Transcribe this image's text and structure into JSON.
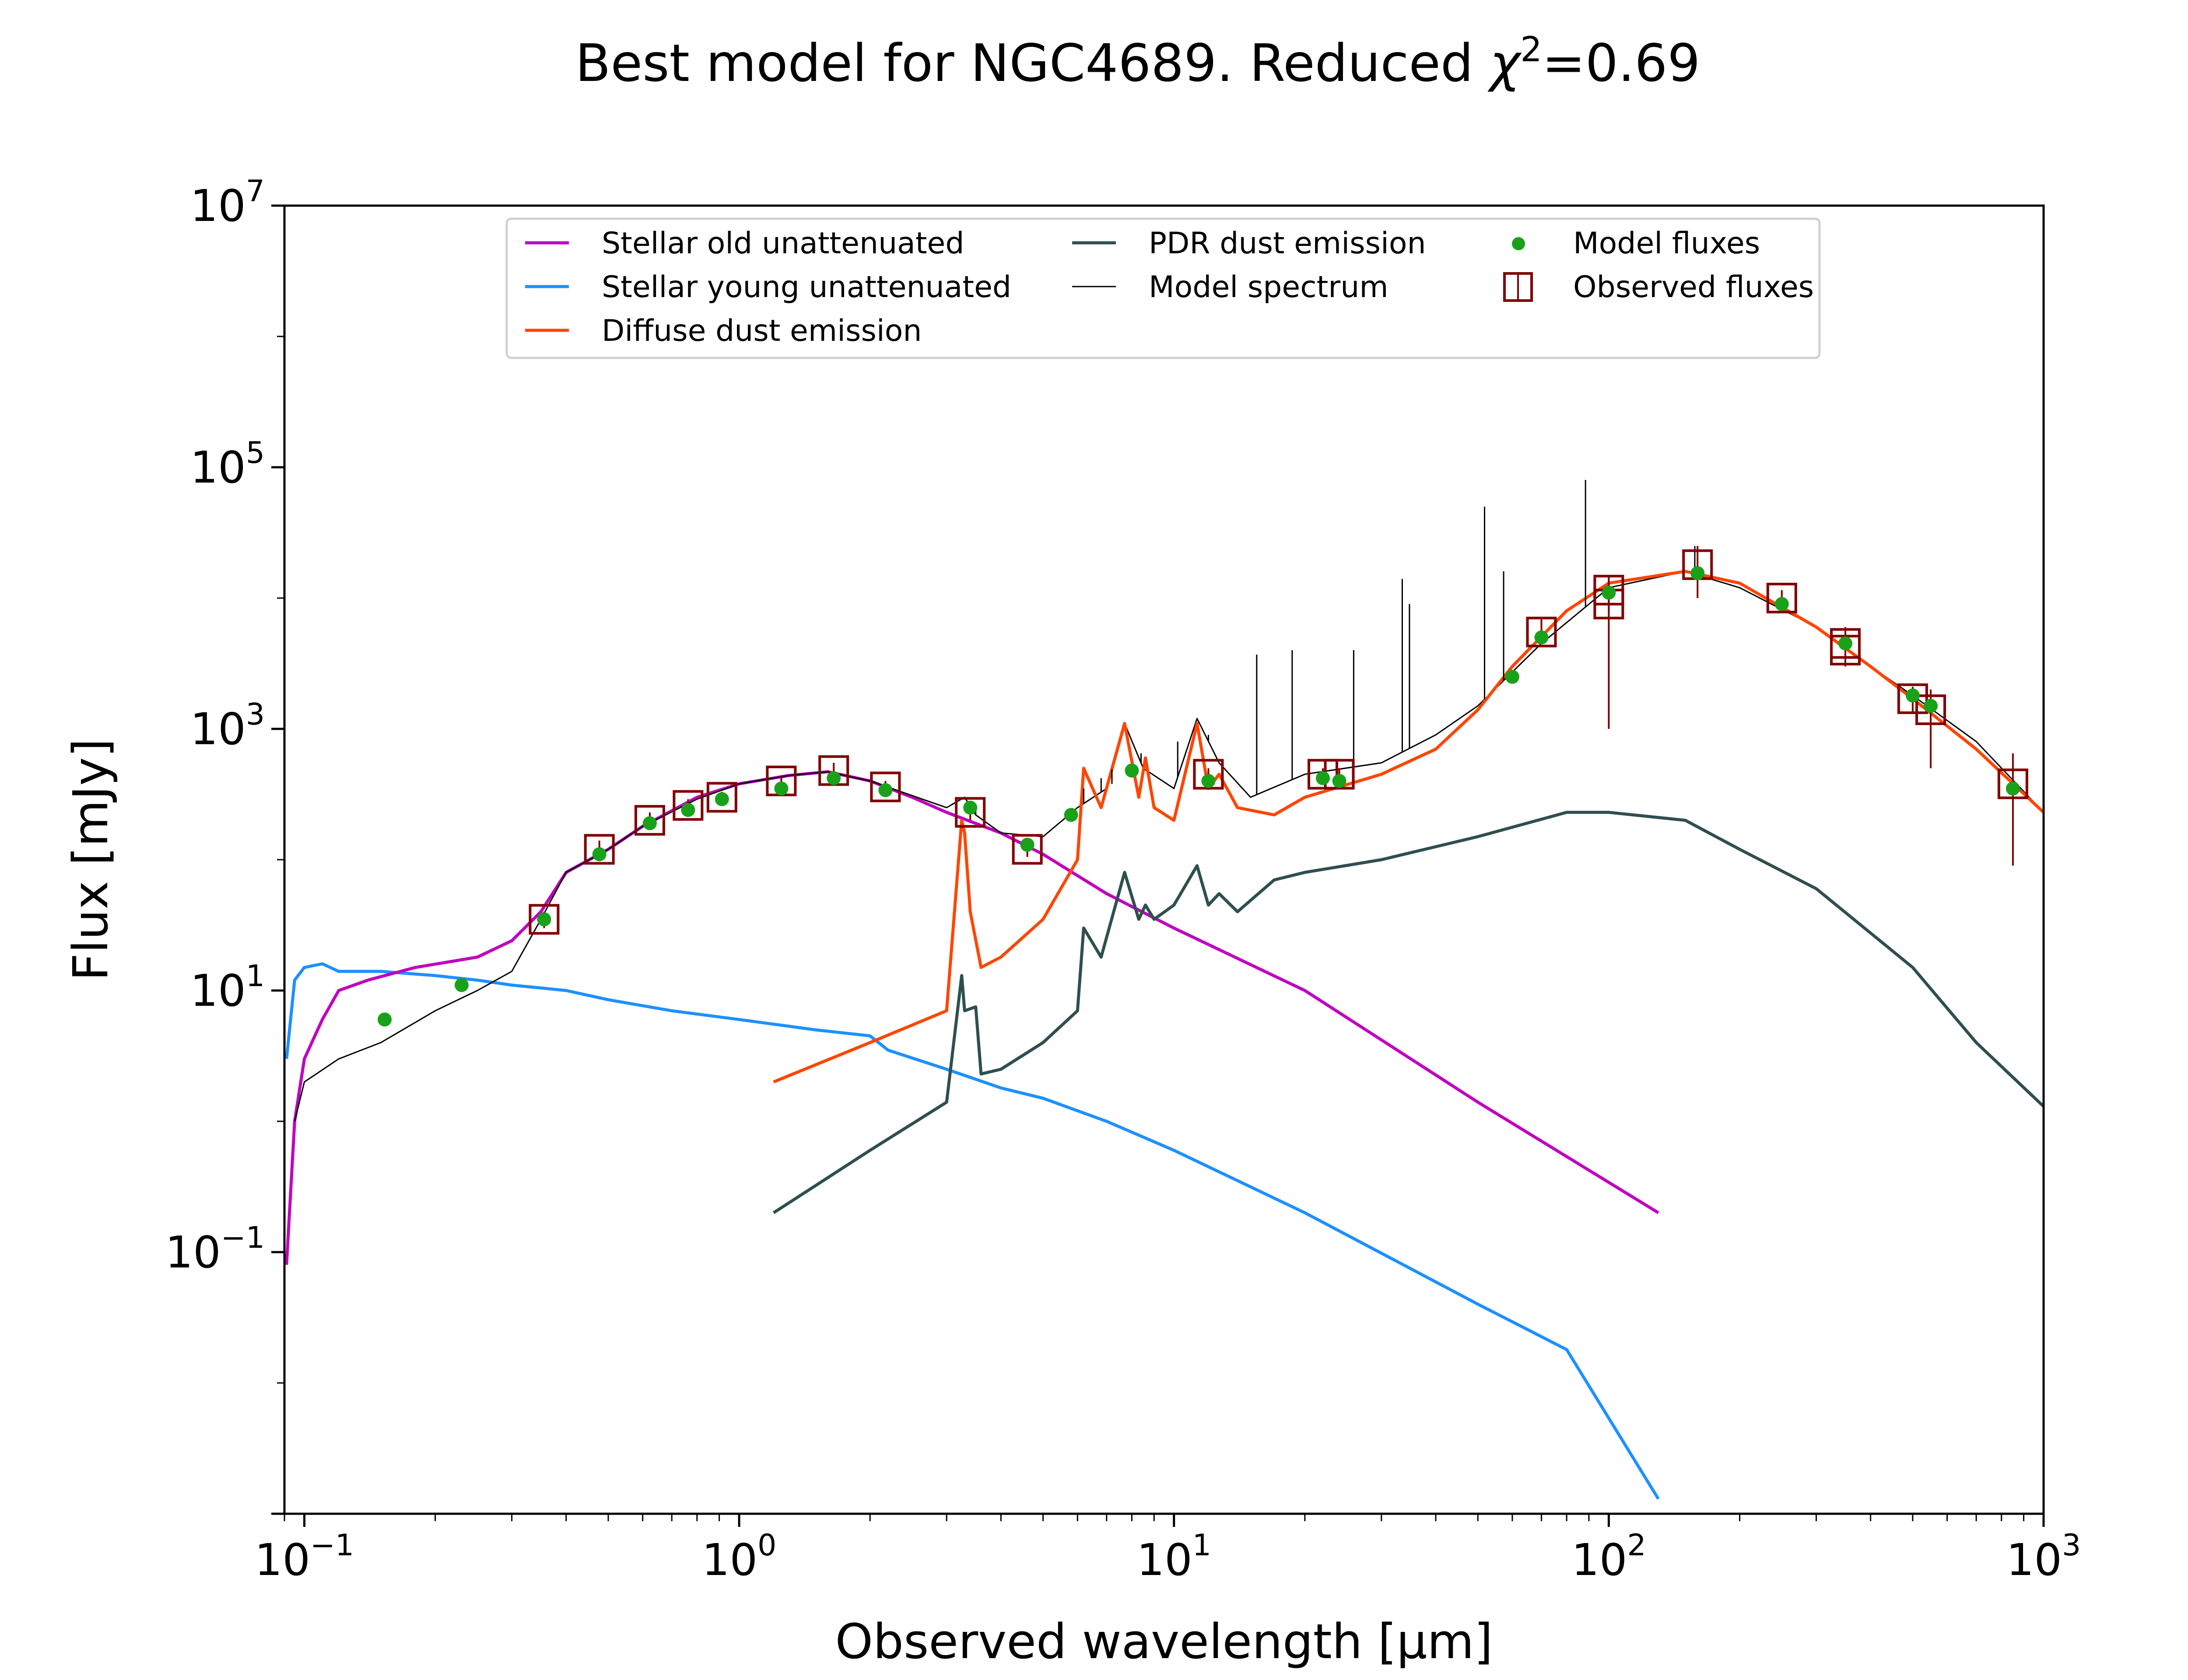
{
  "chart_data": {
    "type": "line",
    "title_prefix": "Best model for NGC4689. Reduced ",
    "title_chi": "χ",
    "title_exp": "2",
    "title_suffix": "=0.69",
    "xlabel": "Observed wavelength [μm]",
    "ylabel": "Flux [mJy]",
    "xscale": "log",
    "yscale": "log",
    "xlim": [
      0.09,
      1000
    ],
    "ylim": [
      0.001,
      10000000
    ],
    "grid": false,
    "legend_position": "top-center",
    "x_ticks": [
      {
        "value": 0.1,
        "base": "10",
        "exp": "−1"
      },
      {
        "value": 1,
        "base": "10",
        "exp": "0"
      },
      {
        "value": 10,
        "base": "10",
        "exp": "1"
      },
      {
        "value": 100,
        "base": "10",
        "exp": "2"
      },
      {
        "value": 1000,
        "base": "10",
        "exp": "3"
      }
    ],
    "y_ticks": [
      {
        "value": 0.1,
        "base": "10",
        "exp": "−1"
      },
      {
        "value": 10,
        "base": "10",
        "exp": "1"
      },
      {
        "value": 1000,
        "base": "10",
        "exp": "3"
      },
      {
        "value": 100000,
        "base": "10",
        "exp": "5"
      },
      {
        "value": 10000000,
        "base": "10",
        "exp": "7"
      }
    ],
    "legend": [
      {
        "label": "Stellar old unattenuated",
        "kind": "line",
        "color": "#BF00BF"
      },
      {
        "label": "Stellar young unattenuated",
        "kind": "line",
        "color": "#1E90FF"
      },
      {
        "label": "Diffuse dust emission",
        "kind": "line",
        "color": "#FF4500"
      },
      {
        "label": "PDR dust emission",
        "kind": "line",
        "color": "#2F4F4F"
      },
      {
        "label": "Model spectrum",
        "kind": "thinline",
        "color": "#000000"
      },
      {
        "label": "Model fluxes",
        "kind": "dot",
        "color": "#1AA11A"
      },
      {
        "label": "Observed fluxes",
        "kind": "square",
        "color": "#800000"
      }
    ],
    "series": [
      {
        "name": "Stellar young unattenuated",
        "color": "#1E90FF",
        "width": 7,
        "points": [
          [
            0.091,
            3
          ],
          [
            0.095,
            12
          ],
          [
            0.1,
            15
          ],
          [
            0.11,
            16
          ],
          [
            0.12,
            14
          ],
          [
            0.15,
            14
          ],
          [
            0.2,
            13
          ],
          [
            0.25,
            12
          ],
          [
            0.3,
            11
          ],
          [
            0.4,
            10
          ],
          [
            0.5,
            8.5
          ],
          [
            0.7,
            7
          ],
          [
            1,
            6
          ],
          [
            1.5,
            5
          ],
          [
            2,
            4.5
          ],
          [
            2.2,
            3.5
          ],
          [
            3,
            2.5
          ],
          [
            4,
            1.8
          ],
          [
            5,
            1.5
          ],
          [
            7,
            1.0
          ],
          [
            10,
            0.6
          ],
          [
            20,
            0.2
          ],
          [
            50,
            0.04
          ],
          [
            80,
            0.018
          ],
          [
            130,
            0.0013
          ]
        ]
      },
      {
        "name": "Stellar old unattenuated",
        "color": "#BF00BF",
        "width": 7,
        "points": [
          [
            0.091,
            0.08
          ],
          [
            0.095,
            1
          ],
          [
            0.1,
            3
          ],
          [
            0.11,
            6
          ],
          [
            0.12,
            10
          ],
          [
            0.14,
            12
          ],
          [
            0.18,
            15
          ],
          [
            0.25,
            18
          ],
          [
            0.3,
            24
          ],
          [
            0.35,
            40
          ],
          [
            0.4,
            80
          ],
          [
            0.5,
            120
          ],
          [
            0.6,
            180
          ],
          [
            0.8,
            300
          ],
          [
            1,
            380
          ],
          [
            1.3,
            440
          ],
          [
            1.6,
            470
          ],
          [
            2,
            400
          ],
          [
            2.5,
            300
          ],
          [
            3,
            230
          ],
          [
            4,
            160
          ],
          [
            5,
            110
          ],
          [
            7,
            55
          ],
          [
            10,
            30
          ],
          [
            20,
            10
          ],
          [
            50,
            1.4
          ],
          [
            130,
            0.2
          ]
        ]
      },
      {
        "name": "Model spectrum",
        "color": "#000000",
        "width": 3,
        "points": [
          [
            0.095,
            1
          ],
          [
            0.1,
            2
          ],
          [
            0.12,
            3
          ],
          [
            0.15,
            4
          ],
          [
            0.2,
            7
          ],
          [
            0.25,
            10
          ],
          [
            0.3,
            14
          ],
          [
            0.35,
            35
          ],
          [
            0.4,
            80
          ],
          [
            0.5,
            120
          ],
          [
            0.6,
            180
          ],
          [
            0.8,
            290
          ],
          [
            1,
            380
          ],
          [
            1.3,
            440
          ],
          [
            1.6,
            470
          ],
          [
            2,
            400
          ],
          [
            3,
            250
          ],
          [
            3.3,
            300
          ],
          [
            3.5,
            220
          ],
          [
            4,
            160
          ],
          [
            5,
            150
          ],
          [
            6,
            250
          ],
          [
            7,
            350
          ],
          [
            7.7,
            1100
          ],
          [
            8.5,
            500
          ],
          [
            10,
            350
          ],
          [
            11.3,
            1200
          ],
          [
            12.7,
            550
          ],
          [
            15,
            300
          ],
          [
            20,
            450
          ],
          [
            30,
            550
          ],
          [
            40,
            900
          ],
          [
            50,
            1500
          ],
          [
            70,
            4500
          ],
          [
            100,
            12000
          ],
          [
            150,
            16000
          ],
          [
            200,
            12000
          ],
          [
            300,
            6000
          ],
          [
            400,
            3000
          ],
          [
            500,
            1800
          ],
          [
            700,
            800
          ],
          [
            1000,
            230
          ]
        ]
      },
      {
        "name": "Diffuse dust emission",
        "color": "#FF4500",
        "width": 7,
        "points": [
          [
            1.2,
            2
          ],
          [
            2,
            4
          ],
          [
            3,
            7
          ],
          [
            3.25,
            200
          ],
          [
            3.3,
            160
          ],
          [
            3.4,
            40
          ],
          [
            3.6,
            15
          ],
          [
            4,
            18
          ],
          [
            5,
            35
          ],
          [
            6,
            100
          ],
          [
            6.2,
            500
          ],
          [
            6.8,
            250
          ],
          [
            7.7,
            1100
          ],
          [
            8.3,
            300
          ],
          [
            8.6,
            600
          ],
          [
            9,
            250
          ],
          [
            10,
            200
          ],
          [
            11.3,
            1100
          ],
          [
            12,
            350
          ],
          [
            12.7,
            450
          ],
          [
            14,
            250
          ],
          [
            17,
            220
          ],
          [
            20,
            300
          ],
          [
            30,
            450
          ],
          [
            40,
            700
          ],
          [
            50,
            1400
          ],
          [
            60,
            3000
          ],
          [
            80,
            8000
          ],
          [
            100,
            13000
          ],
          [
            150,
            16000
          ],
          [
            200,
            13000
          ],
          [
            300,
            6000
          ],
          [
            400,
            3000
          ],
          [
            500,
            1700
          ],
          [
            700,
            700
          ],
          [
            1000,
            230
          ]
        ]
      },
      {
        "name": "PDR dust emission",
        "color": "#2F4F4F",
        "width": 7,
        "points": [
          [
            1.2,
            0.2
          ],
          [
            2,
            0.6
          ],
          [
            3,
            1.4
          ],
          [
            3.25,
            13
          ],
          [
            3.3,
            7
          ],
          [
            3.5,
            7.5
          ],
          [
            3.6,
            2.3
          ],
          [
            4,
            2.5
          ],
          [
            5,
            4
          ],
          [
            6,
            7
          ],
          [
            6.2,
            30
          ],
          [
            6.8,
            18
          ],
          [
            7.7,
            80
          ],
          [
            8.3,
            35
          ],
          [
            8.6,
            45
          ],
          [
            9,
            35
          ],
          [
            10,
            45
          ],
          [
            11.3,
            90
          ],
          [
            12,
            45
          ],
          [
            12.7,
            55
          ],
          [
            14,
            40
          ],
          [
            17,
            70
          ],
          [
            20,
            80
          ],
          [
            30,
            100
          ],
          [
            50,
            150
          ],
          [
            80,
            230
          ],
          [
            100,
            230
          ],
          [
            150,
            200
          ],
          [
            200,
            120
          ],
          [
            300,
            60
          ],
          [
            500,
            15
          ],
          [
            700,
            4
          ],
          [
            1000,
            1.3
          ]
        ]
      }
    ],
    "model_fluxes": [
      [
        0.153,
        6
      ],
      [
        0.23,
        11
      ],
      [
        0.356,
        35
      ],
      [
        0.477,
        110
      ],
      [
        0.623,
        190
      ],
      [
        0.763,
        240
      ],
      [
        0.913,
        290
      ],
      [
        1.25,
        350
      ],
      [
        1.65,
        420
      ],
      [
        2.17,
        340
      ],
      [
        3.4,
        250
      ],
      [
        4.6,
        130
      ],
      [
        5.8,
        220
      ],
      [
        8.0,
        480
      ],
      [
        12,
        400
      ],
      [
        22,
        420
      ],
      [
        24,
        400
      ],
      [
        60,
        2500
      ],
      [
        70,
        5000
      ],
      [
        100,
        11000
      ],
      [
        160,
        15500
      ],
      [
        250,
        9000
      ],
      [
        350,
        4500
      ],
      [
        500,
        1800
      ],
      [
        550,
        1500
      ],
      [
        850,
        350
      ]
    ],
    "observed_fluxes": [
      {
        "x": 0.356,
        "y": 35,
        "lo": 30,
        "hi": 40
      },
      {
        "x": 0.477,
        "y": 120,
        "lo": 100,
        "hi": 140
      },
      {
        "x": 0.623,
        "y": 200,
        "lo": 170,
        "hi": 230
      },
      {
        "x": 0.763,
        "y": 260,
        "lo": 230,
        "hi": 290
      },
      {
        "x": 0.913,
        "y": 300,
        "lo": 270,
        "hi": 330
      },
      {
        "x": 1.25,
        "y": 400,
        "lo": 360,
        "hi": 440
      },
      {
        "x": 1.65,
        "y": 480,
        "lo": 380,
        "hi": 550
      },
      {
        "x": 2.17,
        "y": 360,
        "lo": 320,
        "hi": 400
      },
      {
        "x": 3.4,
        "y": 230,
        "lo": 200,
        "hi": 260
      },
      {
        "x": 4.6,
        "y": 120,
        "lo": 105,
        "hi": 135
      },
      {
        "x": 12,
        "y": 450,
        "lo": 400,
        "hi": 500
      },
      {
        "x": 22,
        "y": 450,
        "lo": 400,
        "hi": 500
      },
      {
        "x": 24,
        "y": 450,
        "lo": 400,
        "hi": 500
      },
      {
        "x": 70,
        "y": 5500,
        "lo": 4500,
        "hi": 7000
      },
      {
        "x": 100,
        "y": 9000,
        "lo": 1000,
        "hi": 14000
      },
      {
        "x": 100,
        "y": 11500,
        "lo": 8000,
        "hi": 15000
      },
      {
        "x": 160,
        "y": 18000,
        "lo": 10000,
        "hi": 25000
      },
      {
        "x": 250,
        "y": 10000,
        "lo": 8500,
        "hi": 11500
      },
      {
        "x": 350,
        "y": 4500,
        "lo": 3000,
        "hi": 6000
      },
      {
        "x": 350,
        "y": 4000,
        "lo": 3000,
        "hi": 5500
      },
      {
        "x": 500,
        "y": 1700,
        "lo": 1300,
        "hi": 2100
      },
      {
        "x": 550,
        "y": 1400,
        "lo": 500,
        "hi": 2000
      },
      {
        "x": 850,
        "y": 380,
        "lo": 90,
        "hi": 650
      }
    ],
    "emission_lines": [
      [
        3.4,
        250
      ],
      [
        3.5,
        260
      ],
      [
        4.1,
        160
      ],
      [
        6.2,
        350
      ],
      [
        6.8,
        420
      ],
      [
        7.2,
        380
      ],
      [
        8.4,
        650
      ],
      [
        10.2,
        800
      ],
      [
        12.0,
        900
      ],
      [
        15.5,
        3700
      ],
      [
        18.7,
        4000
      ],
      [
        25.9,
        4000
      ],
      [
        33.5,
        14000
      ],
      [
        34.8,
        9000
      ],
      [
        51.8,
        50000
      ],
      [
        57.3,
        16000
      ],
      [
        88.4,
        80000
      ],
      [
        121.9,
        14000
      ],
      [
        157.7,
        25000
      ]
    ]
  }
}
